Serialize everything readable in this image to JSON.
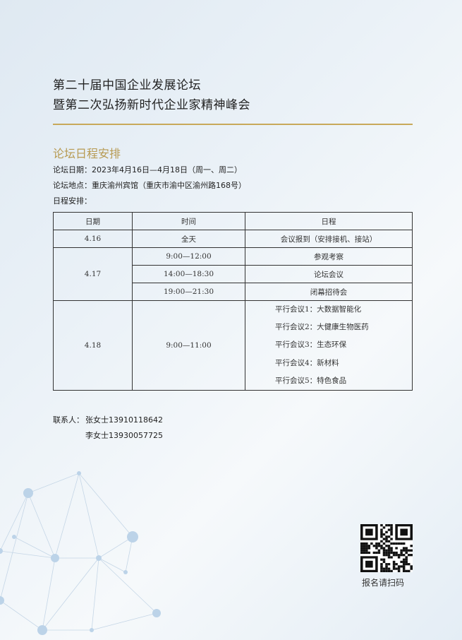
{
  "header": {
    "title_line1": "第二十届中国企业发展论坛",
    "title_line2": "暨第二次弘扬新时代企业家精神峰会"
  },
  "section_title": "论坛日程安排",
  "info": {
    "date": "论坛日期：2023年4月16日—4月18日（周一、周二）",
    "venue": "论坛地点：重庆渝州宾馆（重庆市渝中区渝州路168号）",
    "schedule_label": "日程安排："
  },
  "table": {
    "headers": [
      "日期",
      "时间",
      "日程"
    ],
    "rows": [
      {
        "date": "4.16",
        "time": "全天",
        "agenda": "会议报到（安排接机、接站）"
      },
      {
        "date": "4.17",
        "slots": [
          {
            "time": "9:00—12:00",
            "agenda": "参观考察"
          },
          {
            "time": "14:00—18:30",
            "agenda": "论坛会议"
          },
          {
            "time": "19:00—21:30",
            "agenda": "闭幕招待会"
          }
        ]
      },
      {
        "date": "4.18",
        "time": "9:00—11:00",
        "agenda": [
          "平行会议1：大数据智能化",
          "平行会议2：大健康生物医药",
          "平行会议3：生态环保",
          "平行会议4：新材料",
          "平行会议5：特色食品"
        ]
      }
    ]
  },
  "contact": {
    "label": "联系人：",
    "person1": "张女士13910118642",
    "person2": "李女士13930057725"
  },
  "qr": {
    "label": "报名请扫码"
  },
  "colors": {
    "gold": "#c8a95a",
    "section": "#b79a52"
  }
}
